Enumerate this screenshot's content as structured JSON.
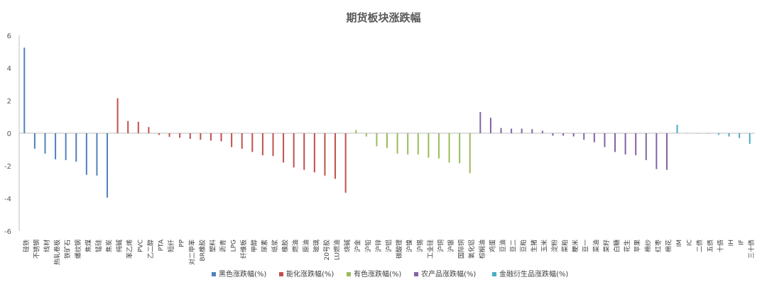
{
  "chart_data": {
    "type": "bar",
    "title": "期货板块涨跌幅",
    "ylim": [
      -6,
      6
    ],
    "yticks": [
      6,
      4,
      2,
      0,
      -2,
      -4,
      -6
    ],
    "grid": false,
    "legend_position": "bottom",
    "series": [
      {
        "name": "黑色涨跌幅(%)",
        "color": "#4f81bd",
        "categories": [
          "硅铁",
          "不锈钢",
          "线材",
          "热轧卷板",
          "铁矿石",
          "螺纹钢",
          "焦煤",
          "锰硅",
          "焦炭"
        ],
        "values": [
          5.25,
          -0.95,
          -1.25,
          -1.6,
          -1.65,
          -1.75,
          -2.55,
          -2.6,
          -3.95
        ]
      },
      {
        "name": "能化涨跌幅(%)",
        "color": "#c0504d",
        "categories": [
          "纯碱",
          "苯乙烯",
          "PVC",
          "乙二醇",
          "PTA",
          "短纤",
          "PP",
          "对二甲苯",
          "BR橡胶",
          "塑料",
          "沥青",
          "LPG",
          "纤维板",
          "甲醇",
          "尿素",
          "纸浆",
          "橡胶",
          "燃油",
          "原油",
          "玻璃",
          "20号胶",
          "LU燃油",
          "烧碱"
        ],
        "values": [
          2.15,
          0.75,
          0.7,
          0.38,
          -0.1,
          -0.22,
          -0.28,
          -0.35,
          -0.4,
          -0.45,
          -0.5,
          -0.85,
          -0.95,
          -1.15,
          -1.35,
          -1.4,
          -1.8,
          -2.1,
          -2.25,
          -2.4,
          -2.6,
          -2.8,
          -3.65
        ]
      },
      {
        "name": "有色涨跌幅(%)",
        "color": "#9bbb59",
        "categories": [
          "沪金",
          "沪铅",
          "沪锌",
          "沪铝",
          "碳酸锂",
          "沪镍",
          "沪锡",
          "工业硅",
          "沪铜",
          "沪银",
          "国际铜",
          "氧化铝"
        ],
        "values": [
          0.2,
          -0.2,
          -0.8,
          -0.9,
          -1.25,
          -1.3,
          -1.3,
          -1.5,
          -1.55,
          -1.8,
          -1.85,
          -2.45
        ]
      },
      {
        "name": "农产品涨跌幅(%)",
        "color": "#8064a2",
        "categories": [
          "棕榈油",
          "鸡蛋",
          "豆油",
          "豆二",
          "豆粕",
          "生猪",
          "玉米",
          "淀粉",
          "菜粕",
          "粳米",
          "豆一",
          "菜油",
          "菜籽",
          "白糖",
          "花生",
          "苹果",
          "棉纱",
          "红枣",
          "棉花"
        ],
        "values": [
          1.3,
          0.95,
          0.32,
          0.28,
          0.28,
          0.25,
          0.15,
          -0.15,
          -0.15,
          -0.2,
          -0.4,
          -0.55,
          -0.85,
          -1.15,
          -1.3,
          -1.35,
          -1.65,
          -2.2,
          -2.25
        ]
      },
      {
        "name": "金融衍生品涨跌幅(%)",
        "color": "#4bacc6",
        "categories": [
          "IM",
          "IC",
          "二债",
          "五债",
          "十债",
          "IH",
          "IF",
          "三十债"
        ],
        "values": [
          0.52,
          0.02,
          -0.02,
          -0.03,
          -0.1,
          -0.2,
          -0.3,
          -0.65
        ]
      }
    ]
  }
}
